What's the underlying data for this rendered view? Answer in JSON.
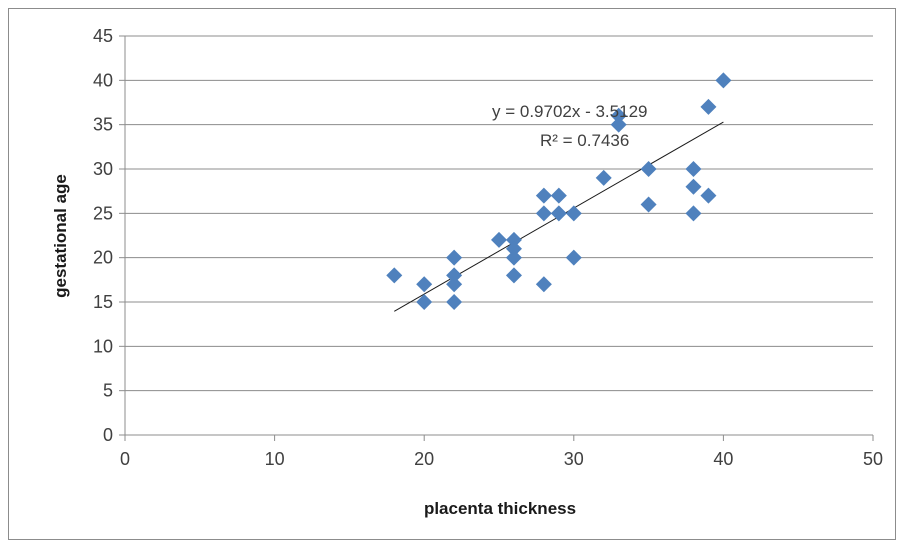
{
  "chart_data": {
    "type": "scatter",
    "xlabel": "placenta thickness",
    "ylabel": "gestational age",
    "xlim": [
      0,
      50
    ],
    "ylim": [
      0,
      45
    ],
    "x_ticks": [
      0,
      10,
      20,
      30,
      40,
      50
    ],
    "y_ticks": [
      0,
      5,
      10,
      15,
      20,
      25,
      30,
      35,
      40,
      45
    ],
    "grid": "horizontal",
    "legend": "none",
    "marker": "diamond",
    "marker_color": "#4f81bd",
    "points": [
      {
        "x": 18,
        "y": 18
      },
      {
        "x": 20,
        "y": 17
      },
      {
        "x": 20,
        "y": 15
      },
      {
        "x": 22,
        "y": 20
      },
      {
        "x": 22,
        "y": 18
      },
      {
        "x": 22,
        "y": 17
      },
      {
        "x": 22,
        "y": 15
      },
      {
        "x": 25,
        "y": 22
      },
      {
        "x": 26,
        "y": 22
      },
      {
        "x": 26,
        "y": 21
      },
      {
        "x": 26,
        "y": 20
      },
      {
        "x": 26,
        "y": 18
      },
      {
        "x": 28,
        "y": 27
      },
      {
        "x": 28,
        "y": 25
      },
      {
        "x": 28,
        "y": 17
      },
      {
        "x": 29,
        "y": 27
      },
      {
        "x": 29,
        "y": 25
      },
      {
        "x": 30,
        "y": 25
      },
      {
        "x": 30,
        "y": 20
      },
      {
        "x": 32,
        "y": 29
      },
      {
        "x": 33,
        "y": 36
      },
      {
        "x": 33,
        "y": 35
      },
      {
        "x": 35,
        "y": 30
      },
      {
        "x": 35,
        "y": 26
      },
      {
        "x": 38,
        "y": 30
      },
      {
        "x": 38,
        "y": 28
      },
      {
        "x": 38,
        "y": 25
      },
      {
        "x": 39,
        "y": 37
      },
      {
        "x": 39,
        "y": 27
      },
      {
        "x": 40,
        "y": 40
      }
    ],
    "trendline": {
      "slope": 0.9702,
      "intercept": -3.5129,
      "x_range": [
        18,
        40
      ],
      "equation": "y = 0.9702x - 3.5129",
      "r_squared": "R² = 0.7436"
    }
  }
}
